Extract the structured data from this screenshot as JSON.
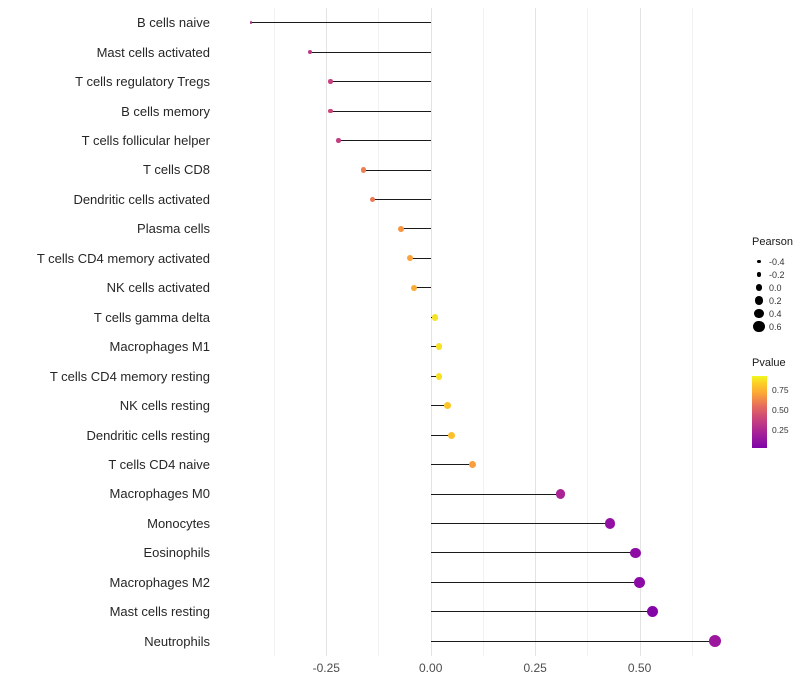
{
  "chart_data": {
    "type": "scatter",
    "subtype": "lollipop",
    "orientation": "horizontal",
    "title": "",
    "xlabel": "",
    "ylabel": "",
    "xlim": [
      -0.49,
      0.75
    ],
    "x_ticks": [
      -0.25,
      0.0,
      0.25,
      0.5
    ],
    "x_tick_labels": [
      "-0.25",
      "0.00",
      "0.25",
      "0.50"
    ],
    "x_minor_ticks": [
      -0.375,
      -0.125,
      0.125,
      0.375,
      0.625
    ],
    "grid": "vertical-only",
    "stem_color": "#1a1a1a",
    "points": [
      {
        "label": "B cells naive",
        "pearson": -0.43,
        "color": "#B52F8C"
      },
      {
        "label": "Mast cells activated",
        "pearson": -0.29,
        "color": "#BE3885"
      },
      {
        "label": "T cells regulatory Tregs",
        "pearson": -0.24,
        "color": "#C8427F"
      },
      {
        "label": "B cells memory",
        "pearson": -0.24,
        "color": "#CA4479"
      },
      {
        "label": "T cells follicular helper",
        "pearson": -0.22,
        "color": "#C23D82"
      },
      {
        "label": "T cells CD8",
        "pearson": -0.16,
        "color": "#EF7E50"
      },
      {
        "label": "Dendritic cells activated",
        "pearson": -0.14,
        "color": "#EC7754"
      },
      {
        "label": "Plasma cells",
        "pearson": -0.07,
        "color": "#F89441"
      },
      {
        "label": "T cells CD4 memory activated",
        "pearson": -0.05,
        "color": "#FBA238"
      },
      {
        "label": "NK cells activated",
        "pearson": -0.04,
        "color": "#FCAA33"
      },
      {
        "label": "T cells gamma delta",
        "pearson": 0.01,
        "color": "#F6E226"
      },
      {
        "label": "Macrophages M1",
        "pearson": 0.02,
        "color": "#F6E126"
      },
      {
        "label": "T cells CD4 memory resting",
        "pearson": 0.02,
        "color": "#F8E025"
      },
      {
        "label": "NK cells resting",
        "pearson": 0.04,
        "color": "#FDC529"
      },
      {
        "label": "Dendritic cells resting",
        "pearson": 0.05,
        "color": "#FCC02C"
      },
      {
        "label": "T cells CD4 naive",
        "pearson": 0.1,
        "color": "#FA9D3B"
      },
      {
        "label": "Macrophages M0",
        "pearson": 0.31,
        "color": "#AA2395"
      },
      {
        "label": "Monocytes",
        "pearson": 0.43,
        "color": "#940FA3"
      },
      {
        "label": "Eosinophils",
        "pearson": 0.49,
        "color": "#8E0CA4"
      },
      {
        "label": "Macrophages M2",
        "pearson": 0.5,
        "color": "#8D0BA5"
      },
      {
        "label": "Mast cells resting",
        "pearson": 0.53,
        "color": "#8405A7"
      },
      {
        "label": "Neutrophils",
        "pearson": 0.68,
        "color": "#9C179E"
      }
    ],
    "size_legend": {
      "title": "Pearson",
      "items": [
        {
          "label": "-0.4",
          "value": -0.4
        },
        {
          "label": "-0.2",
          "value": -0.2
        },
        {
          "label": "0.0",
          "value": 0.0
        },
        {
          "label": "0.2",
          "value": 0.2
        },
        {
          "label": "0.4",
          "value": 0.4
        },
        {
          "label": "0.6",
          "value": 0.6
        }
      ]
    },
    "color_legend": {
      "title": "Pvalue",
      "range": [
        0.02,
        0.92
      ],
      "ticks": [
        {
          "label": "0.75",
          "value": 0.75
        },
        {
          "label": "0.50",
          "value": 0.5
        },
        {
          "label": "0.25",
          "value": 0.25
        }
      ],
      "gradient": [
        {
          "color": "#7E03A8",
          "pos": 0
        },
        {
          "color": "#A82296",
          "pos": 22
        },
        {
          "color": "#CC4778",
          "pos": 42
        },
        {
          "color": "#E56B5D",
          "pos": 58
        },
        {
          "color": "#FCA636",
          "pos": 76
        },
        {
          "color": "#FCCE25",
          "pos": 90
        },
        {
          "color": "#F0F921",
          "pos": 100
        }
      ]
    }
  }
}
